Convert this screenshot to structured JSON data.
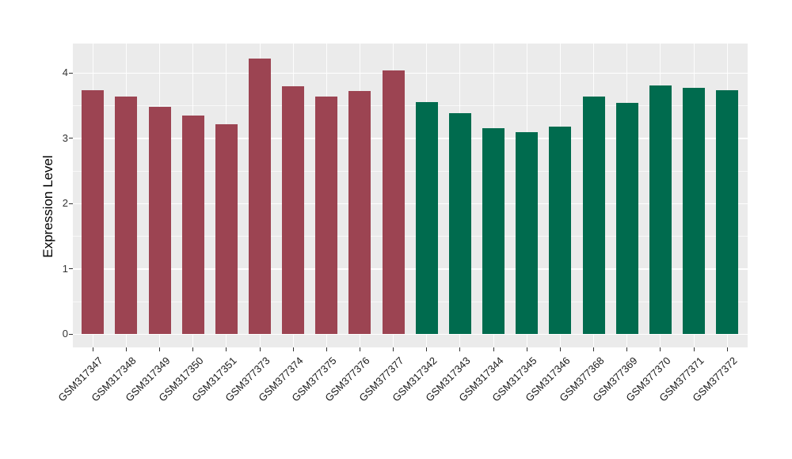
{
  "chart_data": {
    "type": "bar",
    "title": "",
    "xlabel": "",
    "ylabel": "Expression Level",
    "yticks": [
      0,
      1,
      2,
      3,
      4
    ],
    "ytick_labels": [
      "0",
      "1",
      "2",
      "3",
      "4"
    ],
    "ylim": [
      -0.21,
      4.45
    ],
    "grid": "on",
    "legend": "none",
    "panel_bg": "#EBEBEB",
    "grid_color": "#FFFFFF",
    "tick_color": "#333333",
    "group_colors": {
      "group1": "#9C4452",
      "group2": "#006B4E"
    },
    "bars": [
      {
        "label": "GSM317347",
        "value": 3.74,
        "group": "group1"
      },
      {
        "label": "GSM317348",
        "value": 3.64,
        "group": "group1"
      },
      {
        "label": "GSM317349",
        "value": 3.48,
        "group": "group1"
      },
      {
        "label": "GSM317350",
        "value": 3.35,
        "group": "group1"
      },
      {
        "label": "GSM317351",
        "value": 3.22,
        "group": "group1"
      },
      {
        "label": "GSM377373",
        "value": 4.22,
        "group": "group1"
      },
      {
        "label": "GSM377374",
        "value": 3.8,
        "group": "group1"
      },
      {
        "label": "GSM377375",
        "value": 3.64,
        "group": "group1"
      },
      {
        "label": "GSM377376",
        "value": 3.73,
        "group": "group1"
      },
      {
        "label": "GSM377377",
        "value": 4.04,
        "group": "group1"
      },
      {
        "label": "GSM317342",
        "value": 3.56,
        "group": "group2"
      },
      {
        "label": "GSM317343",
        "value": 3.39,
        "group": "group2"
      },
      {
        "label": "GSM317344",
        "value": 3.15,
        "group": "group2"
      },
      {
        "label": "GSM317345",
        "value": 3.1,
        "group": "group2"
      },
      {
        "label": "GSM317346",
        "value": 3.18,
        "group": "group2"
      },
      {
        "label": "GSM377368",
        "value": 3.64,
        "group": "group2"
      },
      {
        "label": "GSM377369",
        "value": 3.54,
        "group": "group2"
      },
      {
        "label": "GSM377370",
        "value": 3.81,
        "group": "group2"
      },
      {
        "label": "GSM377371",
        "value": 3.77,
        "group": "group2"
      },
      {
        "label": "GSM377372",
        "value": 3.74,
        "group": "group2"
      }
    ]
  }
}
